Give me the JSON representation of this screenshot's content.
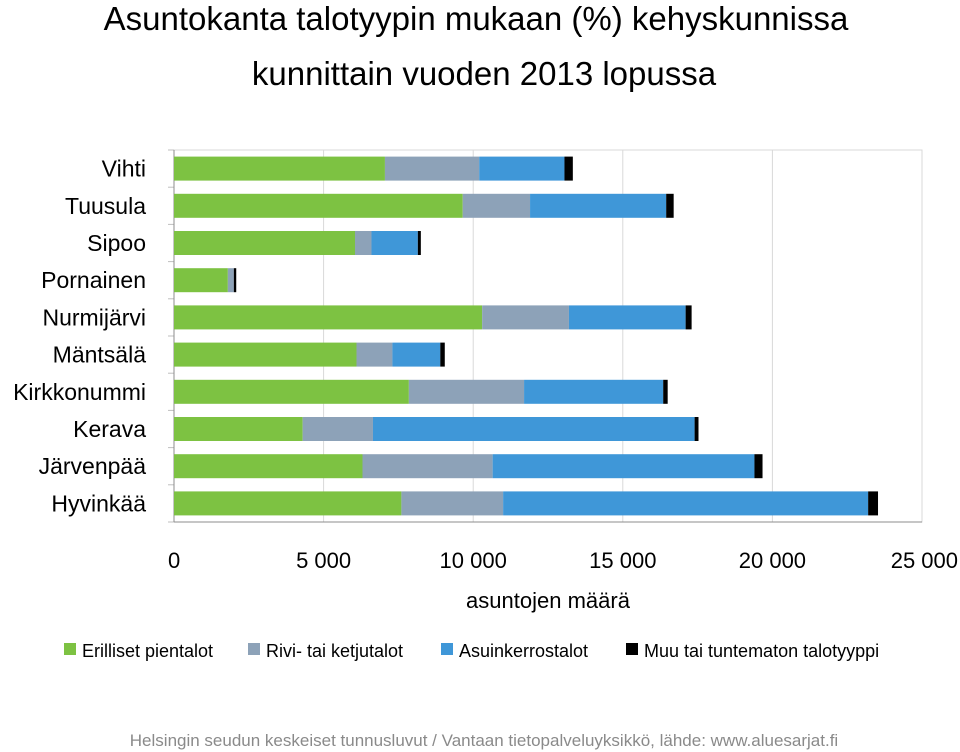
{
  "chart_data": {
    "type": "bar",
    "orientation": "horizontal",
    "stacked": true,
    "title_lines": [
      "Asuntokanta talotyypin mukaan (%) kehyskunnissa",
      "kunnittain vuoden 2013 lopussa"
    ],
    "categories": [
      "Vihti",
      "Tuusula",
      "Sipoo",
      "Pornainen",
      "Nurmijärvi",
      "Mäntsälä",
      "Kirkkonummi",
      "Kerava",
      "Järvenpää",
      "Hyvinkää"
    ],
    "series": [
      {
        "name": "Erilliset pientalot",
        "color": "#7dc242",
        "values": [
          7050,
          9650,
          6050,
          1800,
          10300,
          6100,
          7850,
          4300,
          6300,
          7600
        ]
      },
      {
        "name": "Rivi- tai ketjutalot",
        "color": "#8da2b8",
        "values": [
          3150,
          2250,
          550,
          200,
          2900,
          1200,
          3850,
          2350,
          4350,
          3400
        ]
      },
      {
        "name": "Asuinkerrostalot",
        "color": "#3f97d8",
        "values": [
          2850,
          4550,
          1550,
          0,
          3900,
          1600,
          4650,
          10750,
          8750,
          12200
        ]
      },
      {
        "name": "Muu tai tuntematon talotyyppi",
        "color": "#000000",
        "values": [
          280,
          250,
          100,
          80,
          200,
          150,
          150,
          130,
          270,
          330
        ]
      }
    ],
    "xlabel": "asuntojen määrä",
    "xlim": [
      0,
      25000
    ],
    "xticks": [
      0,
      5000,
      10000,
      15000,
      20000,
      25000
    ],
    "xtick_labels": [
      "0",
      "5 000",
      "10 000",
      "15 000",
      "20 000",
      "25 000"
    ],
    "grid": true,
    "legend_position": "bottom"
  },
  "footer": "Helsingin seudun keskeiset tunnusluvut / Vantaan tietopalveluyksikkö, lähde: www.aluesarjat.fi"
}
